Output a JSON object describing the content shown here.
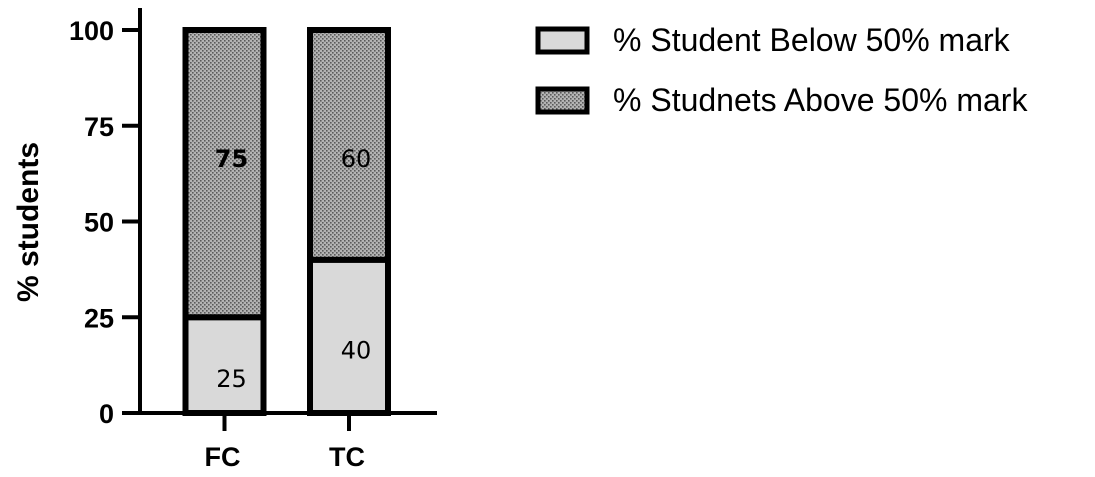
{
  "chart_data": {
    "type": "bar",
    "stacked": true,
    "categories": [
      "FC",
      "TC"
    ],
    "series": [
      {
        "name": "% Student Below 50% mark",
        "values": [
          25,
          40
        ],
        "color": "#d9d9d9",
        "pattern": "solid"
      },
      {
        "name": "% Studnets Above 50% mark",
        "values": [
          75,
          60
        ],
        "color": "#a8a8a8",
        "pattern": "dotted"
      }
    ],
    "data_labels": [
      {
        "series": 0,
        "category": "FC",
        "text": "25",
        "bold": false
      },
      {
        "series": 0,
        "category": "TC",
        "text": "40",
        "bold": false
      },
      {
        "series": 1,
        "category": "FC",
        "text": "75",
        "bold": true
      },
      {
        "series": 1,
        "category": "TC",
        "text": "60",
        "bold": false
      }
    ],
    "ylabel": "% students",
    "xlabel": "",
    "ylim": [
      0,
      100
    ],
    "yticks": [
      0,
      25,
      50,
      75,
      100
    ],
    "grid": false,
    "legend_position": "top-right"
  }
}
